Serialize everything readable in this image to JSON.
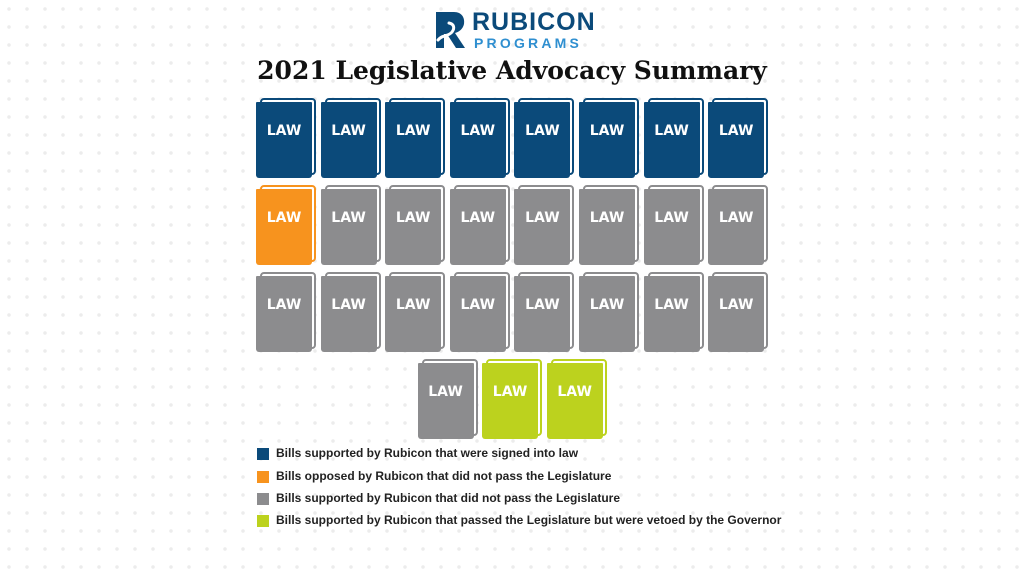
{
  "logo": {
    "line1": "RUBICON",
    "line2": "PROGRAMS",
    "mark_color": "#0b4a7a"
  },
  "title": "2021 Legislative Advocacy Summary",
  "book_label": "LAW",
  "categories": {
    "signed": {
      "color": "#0b4a7a",
      "label": "Bills supported by Rubicon that were signed into law"
    },
    "opposed": {
      "color": "#f7931e",
      "label": "Bills opposed by Rubicon that did not pass the Legislature"
    },
    "failed": {
      "color": "#8c8c8e",
      "label": "Bills supported by Rubicon that did not pass the Legislature"
    },
    "vetoed": {
      "color": "#bcd21e",
      "label": "Bills supported by Rubicon that passed the Legislature but were vetoed by the Governor"
    }
  },
  "rows": [
    [
      "signed",
      "signed",
      "signed",
      "signed",
      "signed",
      "signed",
      "signed",
      "signed"
    ],
    [
      "opposed",
      "failed",
      "failed",
      "failed",
      "failed",
      "failed",
      "failed",
      "failed"
    ],
    [
      "failed",
      "failed",
      "failed",
      "failed",
      "failed",
      "failed",
      "failed",
      "failed"
    ],
    [
      "failed",
      "vetoed",
      "vetoed"
    ]
  ],
  "legend": [
    "signed",
    "opposed",
    "failed",
    "vetoed"
  ]
}
